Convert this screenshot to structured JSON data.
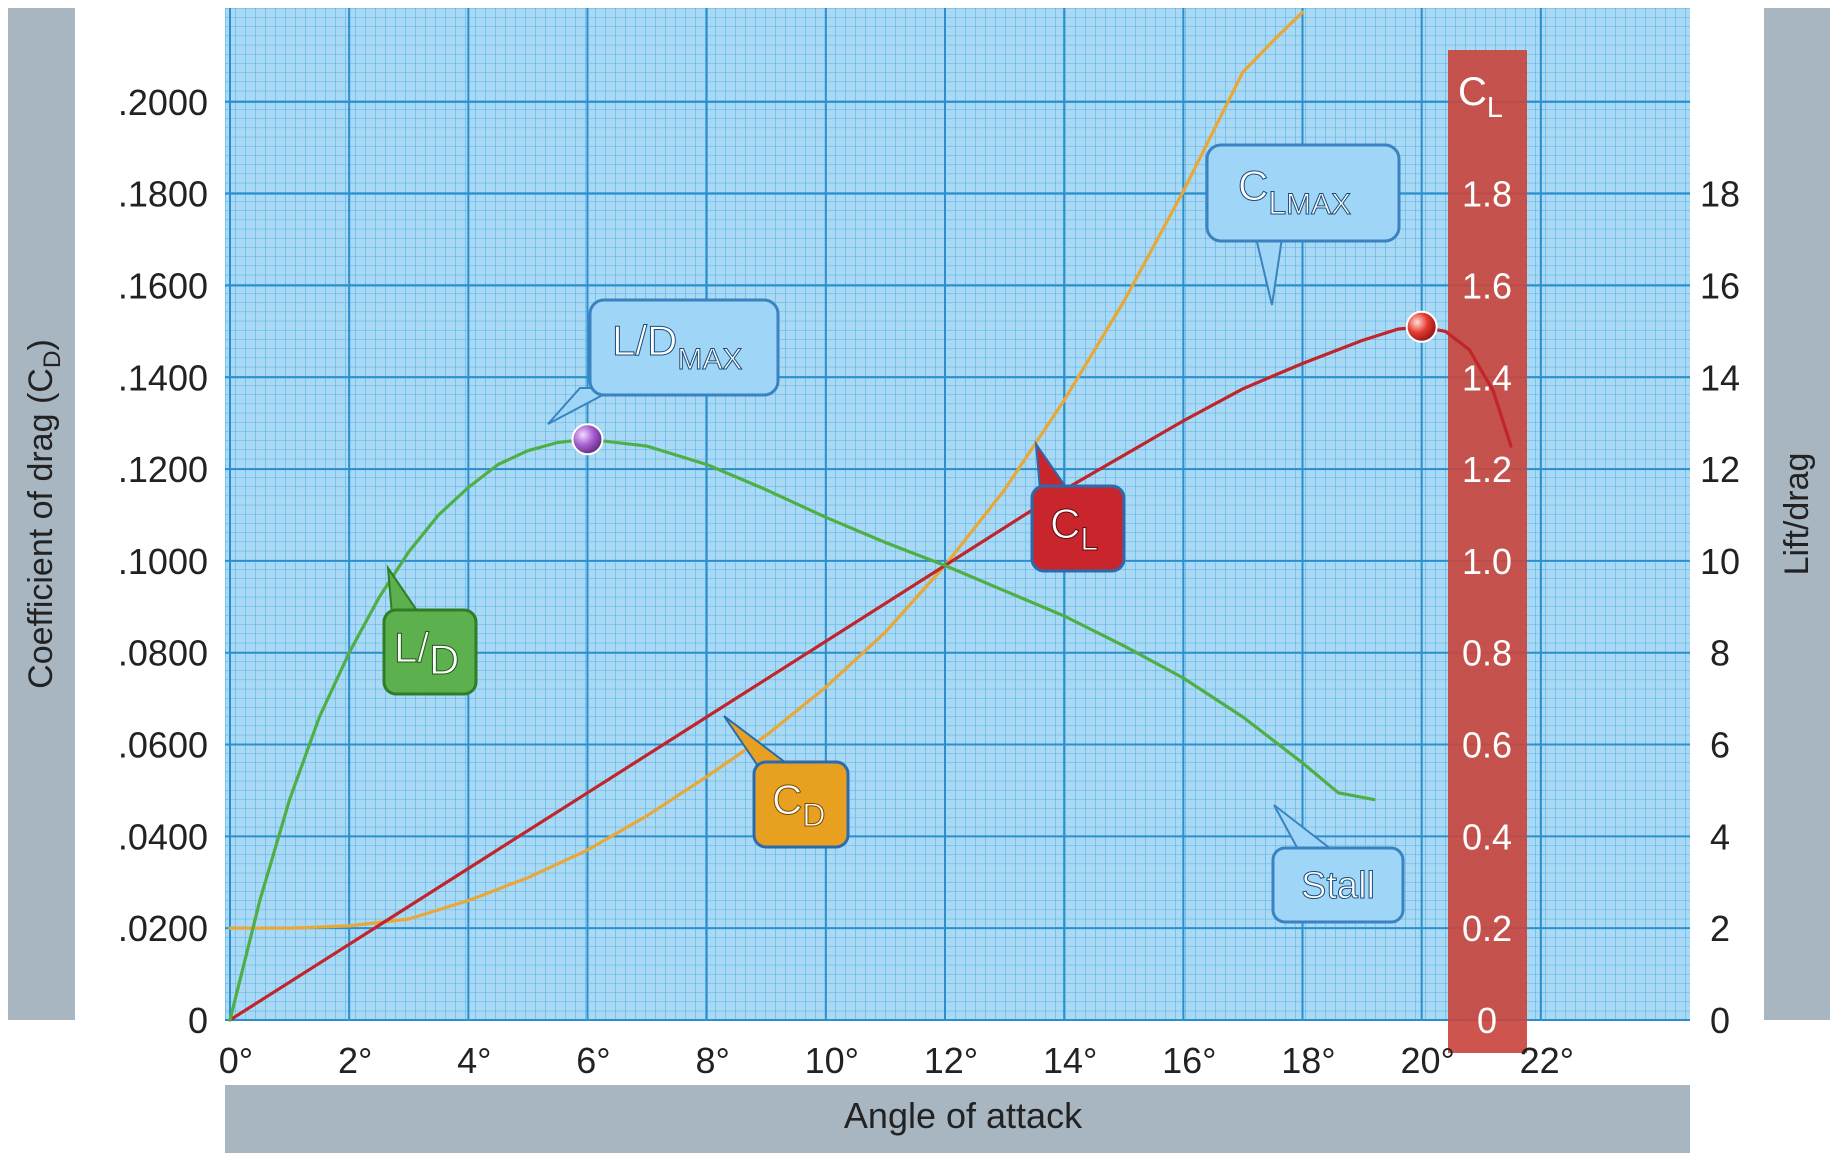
{
  "chart_data": {
    "type": "line",
    "xlabel": "Angle of attack",
    "ylabel_left_main": "Coefficient of drag (C",
    "ylabel_left_sub": "D",
    "ylabel_left_close": ")",
    "ylabel_right": "Lift/drag",
    "cl_axis_main": "C",
    "cl_axis_sub": "L",
    "xlim": [
      0,
      24
    ],
    "ylim_cd": [
      0,
      0.22
    ],
    "ylim_cl": [
      0,
      2.2
    ],
    "ylim_ld": [
      0,
      22
    ],
    "x_ticks": [
      0,
      2,
      4,
      6,
      8,
      10,
      12,
      14,
      16,
      18,
      20,
      22
    ],
    "x_tick_labels": [
      "0°",
      "2°",
      "4°",
      "6°",
      "8°",
      "10°",
      "12°",
      "14°",
      "16°",
      "18°",
      "20°",
      "22°"
    ],
    "cd_ticks": [
      0,
      0.02,
      0.04,
      0.06,
      0.08,
      0.1,
      0.12,
      0.14,
      0.16,
      0.18,
      0.2
    ],
    "cd_tick_labels": [
      "0",
      ".0200",
      ".0400",
      ".0600",
      ".0800",
      ".1000",
      ".1200",
      ".1400",
      ".1600",
      ".1800",
      ".2000"
    ],
    "cl_ticks": [
      0,
      0.2,
      0.4,
      0.6,
      0.8,
      1.0,
      1.2,
      1.4,
      1.6,
      1.8
    ],
    "cl_tick_labels": [
      "0",
      "0.2",
      "0.4",
      "0.6",
      "0.8",
      "1.0",
      "1.2",
      "1.4",
      "1.6",
      "1.8"
    ],
    "ld_ticks": [
      0,
      2,
      4,
      6,
      8,
      10,
      12,
      14,
      16,
      18
    ],
    "ld_tick_labels": [
      "0",
      "2",
      "4",
      "6",
      "8",
      "10",
      "12",
      "14",
      "16",
      "18"
    ],
    "grid": true,
    "series": [
      {
        "key": "cd",
        "axis": "cd",
        "color": "#e8a838",
        "x": [
          0,
          1,
          2,
          3,
          4,
          5,
          6,
          7,
          8,
          9,
          10,
          11,
          12,
          13,
          14,
          15,
          16,
          17,
          17.6,
          18
        ],
        "y": [
          0.02,
          0.02,
          0.0205,
          0.022,
          0.026,
          0.031,
          0.037,
          0.0445,
          0.053,
          0.062,
          0.0725,
          0.0845,
          0.099,
          0.1155,
          0.135,
          0.1565,
          0.1805,
          0.2065,
          0.2145,
          0.2195
        ]
      },
      {
        "key": "cl",
        "axis": "cl",
        "color": "#c0252b",
        "x": [
          0,
          2,
          4,
          6,
          8,
          10,
          12,
          14,
          16,
          17,
          18,
          19,
          19.6,
          20,
          20.4,
          20.8,
          21.2,
          21.5
        ],
        "y": [
          0,
          0.165,
          0.33,
          0.495,
          0.66,
          0.825,
          0.99,
          1.155,
          1.305,
          1.375,
          1.43,
          1.48,
          1.505,
          1.51,
          1.5,
          1.46,
          1.37,
          1.25
        ]
      },
      {
        "key": "ld",
        "axis": "ld",
        "color": "#4fae45",
        "x": [
          0,
          0.5,
          1,
          1.5,
          2,
          2.5,
          3,
          3.5,
          4,
          4.5,
          5,
          5.5,
          6,
          7,
          8,
          9,
          10,
          11,
          12,
          13,
          14,
          15,
          16,
          17,
          18,
          18.6,
          19.2
        ],
        "y": [
          0,
          2.6,
          4.8,
          6.6,
          8.0,
          9.2,
          10.2,
          11.0,
          11.6,
          12.1,
          12.4,
          12.58,
          12.65,
          12.5,
          12.1,
          11.55,
          10.95,
          10.4,
          9.9,
          9.35,
          8.8,
          8.15,
          7.45,
          6.6,
          5.6,
          4.95,
          4.8
        ]
      }
    ],
    "points": [
      {
        "name": "ld-max",
        "axis": "ld",
        "x": 6,
        "y": 12.65,
        "color": "#9b4fc0"
      },
      {
        "name": "cl-max",
        "axis": "cl",
        "x": 20,
        "y": 1.51,
        "color": "#e53a2e"
      }
    ],
    "callouts": {
      "ld_max": {
        "main": "L/D",
        "sub": "MAX"
      },
      "cl_max": {
        "main": "C",
        "sub": "L",
        "sub2": "MAX"
      },
      "ld": {
        "main": "L/",
        "sub": "D"
      },
      "cd": {
        "main": "C",
        "sub": "D"
      },
      "cl": {
        "main": "C",
        "sub": "L"
      },
      "stall": {
        "main": "Stall"
      }
    },
    "colors": {
      "grid_bg": "#a9d9f4",
      "grid_minor": "#57b3e6",
      "grid_major": "#2b8fce",
      "cl_band": "#c9463f",
      "side_panel": "#a8b6c2",
      "callout_blue": "#9fd6f7",
      "callout_green": "#5db04e",
      "callout_orange": "#e8a020",
      "callout_red": "#c8252d"
    }
  }
}
